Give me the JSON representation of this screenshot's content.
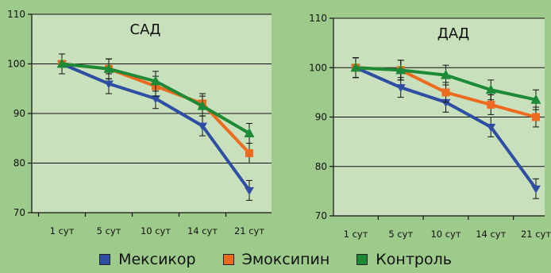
{
  "colors": {
    "background": "#9ecb8c",
    "plot_area": "#c8e1bc",
    "series": [
      "#2f4ea3",
      "#ee6a1e",
      "#1c8a36"
    ]
  },
  "legend": [
    "Мексикор",
    "Эмоксипин",
    "Контроль"
  ],
  "chart_data": [
    {
      "type": "line",
      "title": "САД",
      "categories": [
        "1 сут",
        "5 сут",
        "10 сут",
        "14 сут",
        "21 сут"
      ],
      "ylim": [
        70,
        110
      ],
      "yticks": [
        70,
        80,
        90,
        100,
        110
      ],
      "grid": true,
      "legend_position": "bottom",
      "series": [
        {
          "name": "Мексикор",
          "marker": "circle",
          "values": [
            100,
            96,
            93,
            87.5,
            74.5
          ],
          "errors": [
            2,
            2,
            2,
            2,
            2
          ]
        },
        {
          "name": "Эмоксипин",
          "marker": "square",
          "values": [
            100,
            99,
            95.5,
            92,
            82
          ],
          "errors": [
            2,
            2,
            2,
            2,
            2
          ]
        },
        {
          "name": "Контроль",
          "marker": "triangle",
          "values": [
            100,
            99,
            96.5,
            91.5,
            86
          ],
          "errors": [
            2,
            2,
            2,
            2,
            2
          ]
        }
      ]
    },
    {
      "type": "line",
      "title": "ДАД",
      "categories": [
        "1 сут",
        "5 сут",
        "10 сут",
        "14 сут",
        "21 сут"
      ],
      "ylim": [
        70,
        110
      ],
      "yticks": [
        70,
        80,
        90,
        100,
        110
      ],
      "grid": true,
      "legend_position": "bottom",
      "series": [
        {
          "name": "Мексикор",
          "marker": "circle",
          "values": [
            100,
            96,
            93,
            88,
            75.5
          ],
          "errors": [
            2,
            2,
            2,
            2,
            2
          ]
        },
        {
          "name": "Эмоксипин",
          "marker": "square",
          "values": [
            100,
            99.5,
            95,
            92.5,
            90
          ],
          "errors": [
            2,
            2,
            2,
            2,
            2
          ]
        },
        {
          "name": "Контроль",
          "marker": "triangle",
          "values": [
            100,
            99.5,
            98.5,
            95.5,
            93.5
          ],
          "errors": [
            2,
            2,
            2,
            2,
            2
          ]
        }
      ]
    }
  ]
}
